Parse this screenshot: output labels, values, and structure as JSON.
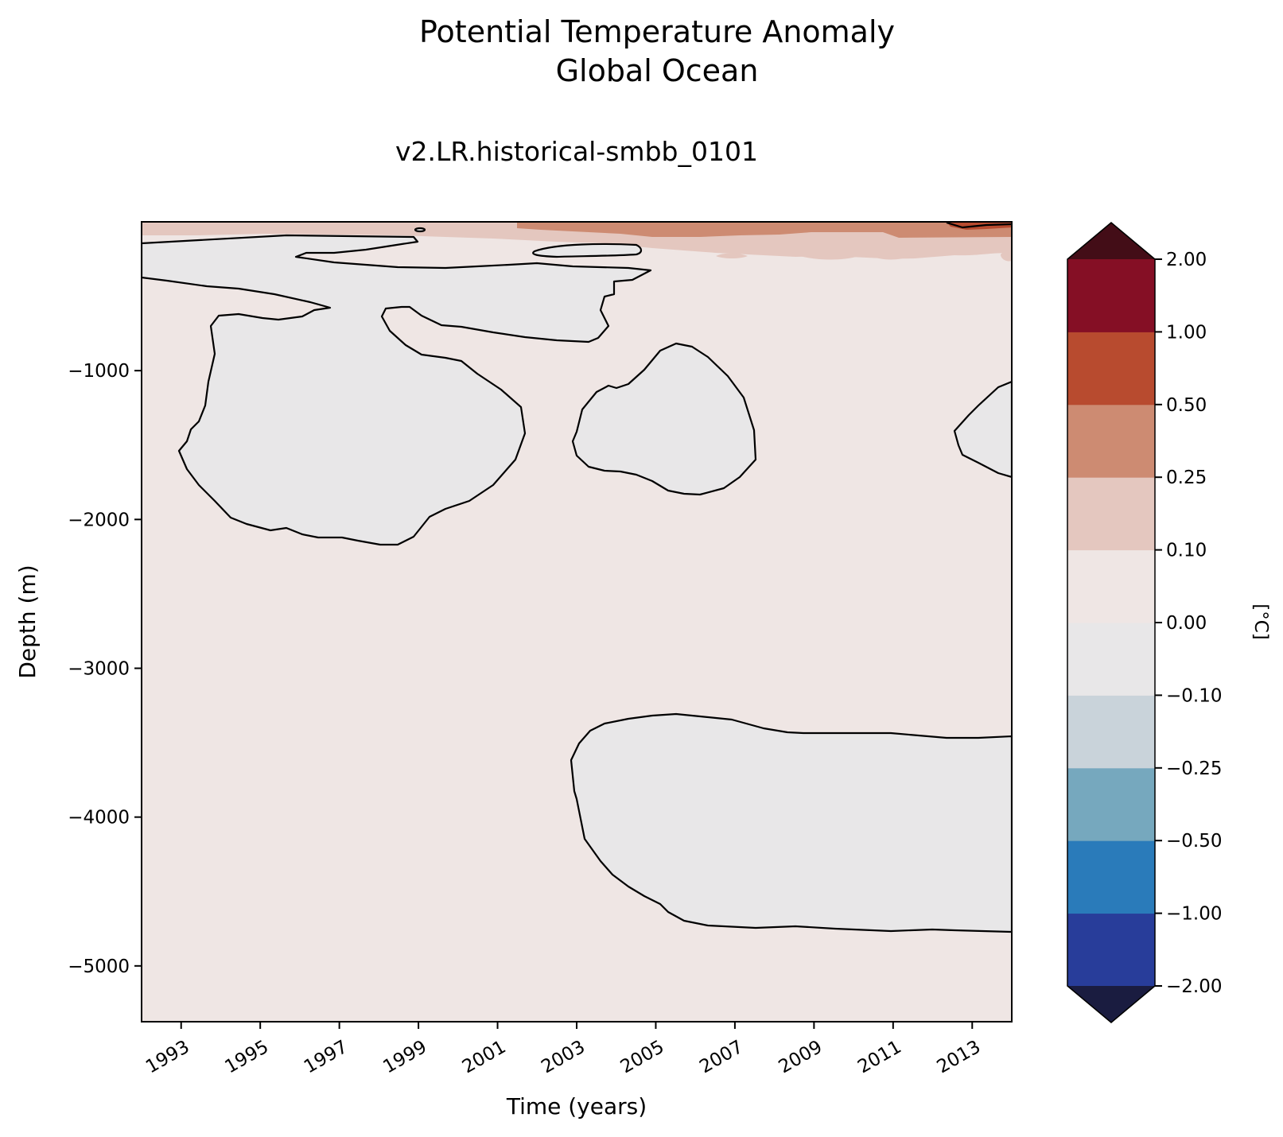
{
  "chart_data": {
    "type": "heatmap",
    "title_lines": [
      "Potential Temperature Anomaly",
      "Global Ocean"
    ],
    "subtitle": "v2.LR.historical-smbb_0101",
    "xlabel": "Time (years)",
    "ylabel": "Depth (m)",
    "xlim": [
      1992.0,
      2014.0
    ],
    "ylim": [
      -5375,
      0
    ],
    "x_ticks": [
      1993,
      1995,
      1997,
      1999,
      2001,
      2003,
      2005,
      2007,
      2009,
      2011,
      2013
    ],
    "y_ticks": [
      -1000,
      -2000,
      -3000,
      -4000,
      -5000
    ],
    "y_tick_labels": [
      "−1000",
      "−2000",
      "−3000",
      "−4000",
      "−5000"
    ],
    "colorbar": {
      "label": "[°C]",
      "levels": [
        -2.0,
        -1.0,
        -0.5,
        -0.25,
        -0.1,
        0.0,
        0.1,
        0.25,
        0.5,
        1.0,
        2.0
      ],
      "level_labels": [
        "−2.00",
        "−1.00",
        "−0.50",
        "−0.25",
        "−0.10",
        "0.00",
        "0.10",
        "0.25",
        "0.50",
        "1.00",
        "2.00"
      ],
      "colors": [
        "#283d9a",
        "#2a7bba",
        "#76a8be",
        "#c9d3da",
        "#e8e7e8",
        "#efe6e4",
        "#e4c7bf",
        "#cd8b72",
        "#b84b2f",
        "#850f25"
      ],
      "under_color": "#1a1c40",
      "over_color": "#430d17",
      "extend": "both"
    },
    "background_color": "#efe6e4",
    "cool_region_color": "#e8e7e8",
    "contour_level": 0.0,
    "contour_color": "#000000",
    "description": "Anomaly is slightly positive (0.00 to 0.10) over most of the depth-time section; 0 to -0.10 regions enclosed by the 0.00 contour; 0.10-1.00 warming in upper ocean after ~2001."
  }
}
